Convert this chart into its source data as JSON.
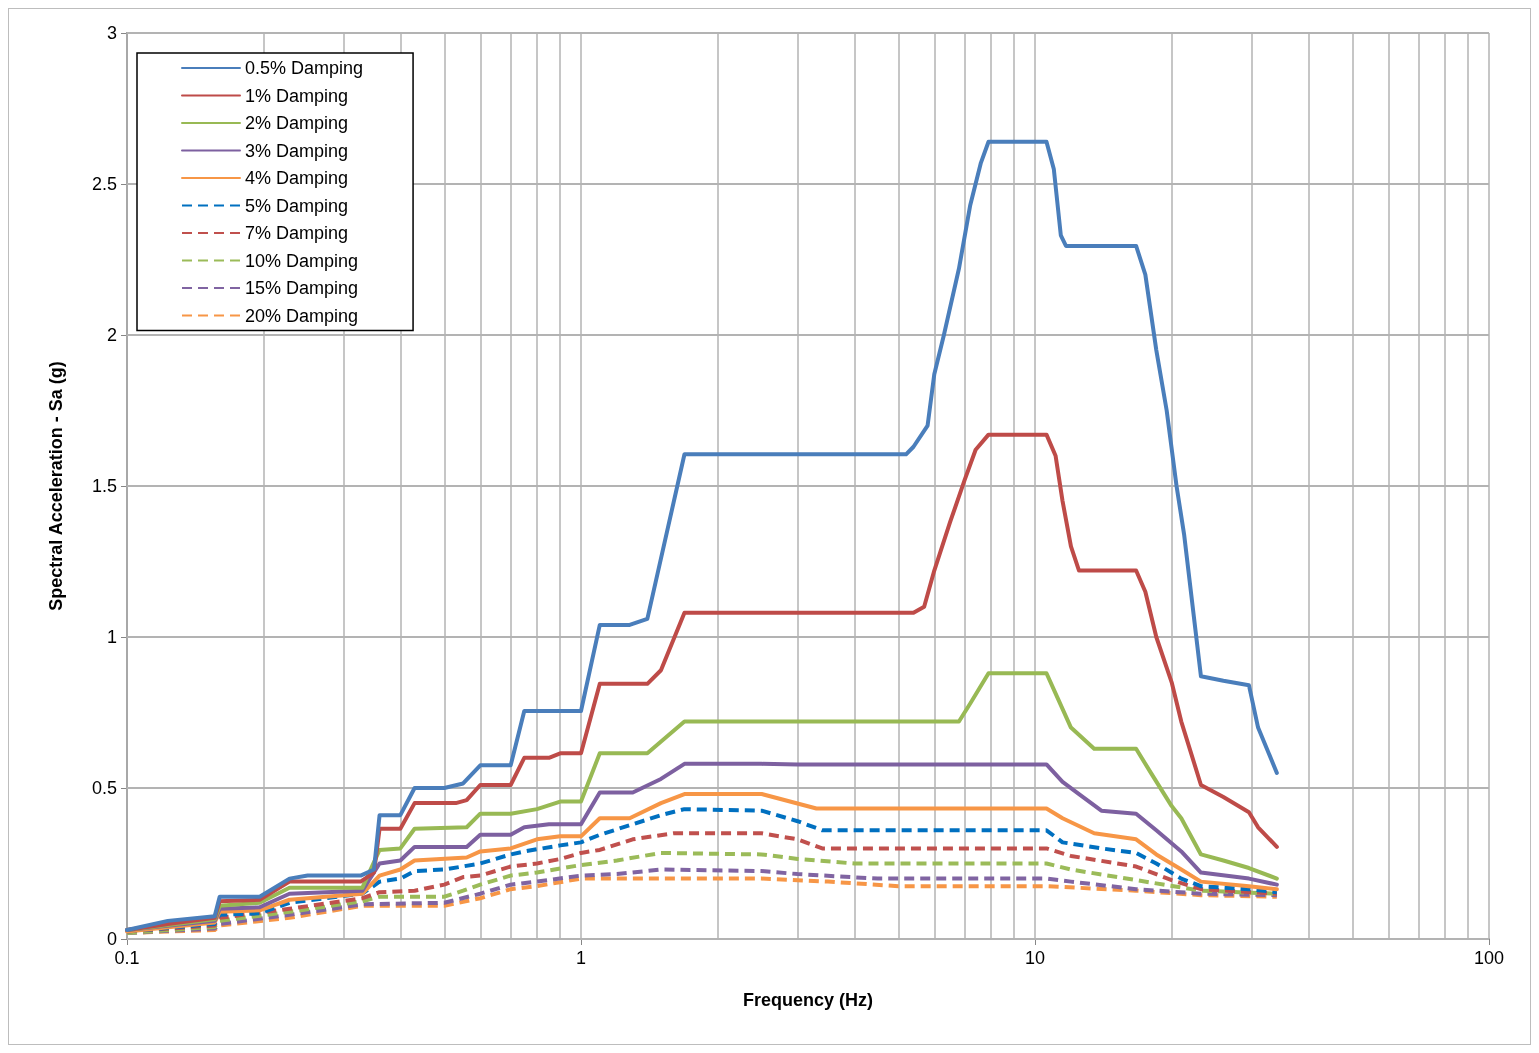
{
  "chart_data": {
    "type": "line",
    "xlabel": "Frequency (Hz)",
    "ylabel": "Spectral Acceleration - Sa (g)",
    "log": "x",
    "grid": true,
    "legend": "top left",
    "marker": "none",
    "xlim": [
      0.1,
      100
    ],
    "xticks": [
      0.1,
      {
        "value": 0.2,
        "label": null
      },
      {
        "value": 0.3,
        "label": null
      },
      {
        "value": 0.4,
        "label": null
      },
      {
        "value": 0.5,
        "label": null
      },
      {
        "value": 0.6,
        "label": null
      },
      {
        "value": 0.7,
        "label": null
      },
      {
        "value": 0.8,
        "label": null
      },
      {
        "value": 0.9,
        "label": null
      },
      1,
      {
        "value": 2,
        "label": null
      },
      {
        "value": 3,
        "label": null
      },
      {
        "value": 4,
        "label": null
      },
      {
        "value": 5,
        "label": null
      },
      {
        "value": 6,
        "label": null
      },
      {
        "value": 7,
        "label": null
      },
      {
        "value": 8,
        "label": null
      },
      {
        "value": 9,
        "label": null
      },
      10,
      {
        "value": 20,
        "label": null
      },
      {
        "value": 30,
        "label": null
      },
      {
        "value": 40,
        "label": null
      },
      {
        "value": 50,
        "label": null
      },
      {
        "value": 60,
        "label": null
      },
      {
        "value": 70,
        "label": null
      },
      {
        "value": 80,
        "label": null
      },
      {
        "value": 90,
        "label": null
      },
      100
    ],
    "ylim": [
      0,
      3
    ],
    "yticks": [
      0,
      0.5,
      1,
      1.5,
      2,
      2.5,
      3
    ],
    "series": [
      {
        "name": "0.5% Damping",
        "color": "#4a7ebb",
        "line_style": "solid",
        "x": [
          0.1,
          0.123,
          0.156,
          0.16,
          0.196,
          0.228,
          0.25,
          0.327,
          0.35,
          0.36,
          0.4,
          0.43,
          0.5,
          0.55,
          0.6,
          0.7,
          0.75,
          1.0,
          1.1,
          1.28,
          1.4,
          1.69,
          5.2,
          5.4,
          5.8,
          6.0,
          6.3,
          6.8,
          7.2,
          7.6,
          7.9,
          10.6,
          11.0,
          11.4,
          11.7,
          16.7,
          17.5,
          18.5,
          19.5,
          20.5,
          21.3,
          23.2,
          26,
          29.6,
          31,
          34.1
        ],
        "values": [
          0.03,
          0.06,
          0.075,
          0.14,
          0.14,
          0.2,
          0.21,
          0.21,
          0.23,
          0.41,
          0.41,
          0.5,
          0.5,
          0.515,
          0.575,
          0.575,
          0.755,
          0.755,
          1.04,
          1.04,
          1.06,
          1.605,
          1.605,
          1.63,
          1.7,
          1.87,
          2.0,
          2.22,
          2.43,
          2.57,
          2.64,
          2.64,
          2.55,
          2.33,
          2.295,
          2.295,
          2.2,
          1.95,
          1.75,
          1.5,
          1.34,
          0.87,
          0.855,
          0.84,
          0.7,
          0.55
        ]
      },
      {
        "name": "1% Damping",
        "color": "#be4b48",
        "line_style": "solid",
        "x": [
          0.1,
          0.123,
          0.156,
          0.16,
          0.196,
          0.228,
          0.327,
          0.35,
          0.36,
          0.4,
          0.43,
          0.53,
          0.56,
          0.6,
          0.7,
          0.75,
          0.85,
          0.9,
          1.0,
          1.1,
          1.4,
          1.5,
          1.69,
          5.4,
          5.7,
          6.0,
          6.5,
          7.0,
          7.4,
          7.9,
          10.6,
          11.1,
          11.5,
          12.0,
          12.5,
          16.7,
          17.5,
          18.5,
          20,
          21,
          23.2,
          26,
          29.6,
          31,
          34.1
        ],
        "values": [
          0.03,
          0.05,
          0.07,
          0.125,
          0.13,
          0.19,
          0.19,
          0.22,
          0.365,
          0.365,
          0.45,
          0.45,
          0.46,
          0.51,
          0.51,
          0.6,
          0.6,
          0.615,
          0.615,
          0.845,
          0.845,
          0.89,
          1.08,
          1.08,
          1.1,
          1.22,
          1.38,
          1.52,
          1.62,
          1.67,
          1.67,
          1.6,
          1.45,
          1.3,
          1.22,
          1.22,
          1.15,
          1.0,
          0.85,
          0.72,
          0.51,
          0.47,
          0.42,
          0.37,
          0.305
        ]
      },
      {
        "name": "2% Damping",
        "color": "#98b954",
        "line_style": "solid",
        "x": [
          0.1,
          0.156,
          0.16,
          0.196,
          0.228,
          0.33,
          0.36,
          0.4,
          0.43,
          0.56,
          0.6,
          0.7,
          0.8,
          0.9,
          1.0,
          1.1,
          1.4,
          1.69,
          6.8,
          7.2,
          7.9,
          10.6,
          11.2,
          12,
          13.5,
          16.7,
          18,
          20,
          21,
          23.2,
          26,
          29.6,
          34.1
        ],
        "values": [
          0.03,
          0.065,
          0.11,
          0.12,
          0.17,
          0.17,
          0.295,
          0.3,
          0.365,
          0.37,
          0.415,
          0.415,
          0.43,
          0.455,
          0.455,
          0.615,
          0.615,
          0.72,
          0.72,
          0.78,
          0.88,
          0.88,
          0.8,
          0.7,
          0.63,
          0.63,
          0.55,
          0.44,
          0.4,
          0.28,
          0.26,
          0.235,
          0.2
        ]
      },
      {
        "name": "3% Damping",
        "color": "#7d60a0",
        "line_style": "solid",
        "x": [
          0.1,
          0.156,
          0.16,
          0.196,
          0.228,
          0.33,
          0.36,
          0.4,
          0.43,
          0.56,
          0.6,
          0.7,
          0.75,
          0.85,
          1.0,
          1.1,
          1.3,
          1.5,
          1.69,
          2.5,
          3,
          10.6,
          11.5,
          12.5,
          14,
          16.7,
          18.5,
          21,
          23.2,
          29.6,
          34.1
        ],
        "values": [
          0.03,
          0.06,
          0.1,
          0.105,
          0.15,
          0.16,
          0.25,
          0.26,
          0.305,
          0.305,
          0.345,
          0.345,
          0.37,
          0.38,
          0.38,
          0.485,
          0.485,
          0.53,
          0.58,
          0.58,
          0.578,
          0.578,
          0.52,
          0.48,
          0.425,
          0.415,
          0.36,
          0.29,
          0.22,
          0.2,
          0.18
        ]
      },
      {
        "name": "4% Damping",
        "color": "#f79646",
        "line_style": "solid",
        "x": [
          0.1,
          0.156,
          0.16,
          0.196,
          0.228,
          0.33,
          0.36,
          0.4,
          0.43,
          0.56,
          0.6,
          0.7,
          0.8,
          0.9,
          1.0,
          1.1,
          1.28,
          1.5,
          1.69,
          2.5,
          3.3,
          10.6,
          11.5,
          13.5,
          16.7,
          18.5,
          21,
          23.2,
          29.6,
          34.1
        ],
        "values": [
          0.025,
          0.055,
          0.09,
          0.095,
          0.13,
          0.15,
          0.21,
          0.23,
          0.26,
          0.27,
          0.29,
          0.3,
          0.33,
          0.34,
          0.34,
          0.4,
          0.4,
          0.45,
          0.48,
          0.48,
          0.432,
          0.432,
          0.4,
          0.35,
          0.33,
          0.28,
          0.23,
          0.19,
          0.175,
          0.165
        ]
      },
      {
        "name": "5% Damping",
        "color": "#0070c0",
        "line_style": "dashed",
        "x": [
          0.1,
          0.156,
          0.16,
          0.196,
          0.228,
          0.33,
          0.36,
          0.4,
          0.43,
          0.5,
          0.6,
          0.7,
          0.75,
          0.9,
          1.0,
          1.1,
          1.3,
          1.5,
          1.69,
          2.5,
          3.0,
          3.4,
          10.6,
          11.5,
          14,
          16.7,
          18.5,
          21,
          23.2,
          29.6,
          34.1
        ],
        "values": [
          0.025,
          0.05,
          0.08,
          0.085,
          0.12,
          0.15,
          0.19,
          0.2,
          0.225,
          0.23,
          0.25,
          0.28,
          0.29,
          0.31,
          0.32,
          0.345,
          0.38,
          0.41,
          0.43,
          0.425,
          0.39,
          0.36,
          0.36,
          0.32,
          0.3,
          0.285,
          0.25,
          0.2,
          0.175,
          0.165,
          0.155
        ]
      },
      {
        "name": "7% Damping",
        "color": "#c0504d",
        "line_style": "dashed",
        "x": [
          0.1,
          0.156,
          0.16,
          0.228,
          0.33,
          0.36,
          0.43,
          0.5,
          0.55,
          0.6,
          0.7,
          0.8,
          0.9,
          1.0,
          1.1,
          1.3,
          1.6,
          2.5,
          3,
          3.4,
          10.6,
          12,
          16.7,
          20,
          23.2,
          34.1
        ],
        "values": [
          0.025,
          0.045,
          0.07,
          0.1,
          0.135,
          0.155,
          0.16,
          0.18,
          0.205,
          0.21,
          0.24,
          0.25,
          0.265,
          0.285,
          0.295,
          0.33,
          0.35,
          0.35,
          0.33,
          0.3,
          0.3,
          0.275,
          0.24,
          0.195,
          0.165,
          0.15
        ]
      },
      {
        "name": "10% Damping",
        "color": "#9bbb59",
        "line_style": "dashed",
        "x": [
          0.1,
          0.156,
          0.16,
          0.228,
          0.33,
          0.36,
          0.5,
          0.55,
          0.6,
          0.7,
          0.8,
          1.0,
          1.2,
          1.5,
          2.5,
          3.0,
          4.0,
          10.6,
          12,
          16.7,
          23.2,
          34.1
        ],
        "values": [
          0.02,
          0.04,
          0.06,
          0.09,
          0.125,
          0.14,
          0.14,
          0.16,
          0.18,
          0.21,
          0.22,
          0.245,
          0.26,
          0.285,
          0.28,
          0.265,
          0.25,
          0.25,
          0.23,
          0.195,
          0.16,
          0.15
        ]
      },
      {
        "name": "15% Damping",
        "color": "#8064a2",
        "line_style": "dashed",
        "x": [
          0.1,
          0.156,
          0.16,
          0.228,
          0.33,
          0.5,
          0.6,
          0.7,
          0.8,
          1.0,
          1.2,
          1.5,
          2.5,
          3.0,
          4.5,
          10.6,
          12,
          16.7,
          23.2,
          34.1
        ],
        "values": [
          0.02,
          0.035,
          0.05,
          0.08,
          0.115,
          0.12,
          0.15,
          0.18,
          0.19,
          0.21,
          0.215,
          0.23,
          0.225,
          0.215,
          0.2,
          0.2,
          0.19,
          0.165,
          0.15,
          0.145
        ]
      },
      {
        "name": "20% Damping",
        "color": "#f79646",
        "line_style": "dashed",
        "x": [
          0.1,
          0.156,
          0.16,
          0.228,
          0.33,
          0.5,
          0.6,
          0.7,
          0.8,
          1.0,
          2.5,
          3.5,
          5,
          10.6,
          16.7,
          23.2,
          34.1
        ],
        "values": [
          0.02,
          0.03,
          0.045,
          0.07,
          0.11,
          0.11,
          0.135,
          0.165,
          0.175,
          0.2,
          0.2,
          0.19,
          0.175,
          0.175,
          0.16,
          0.145,
          0.14
        ]
      }
    ]
  }
}
